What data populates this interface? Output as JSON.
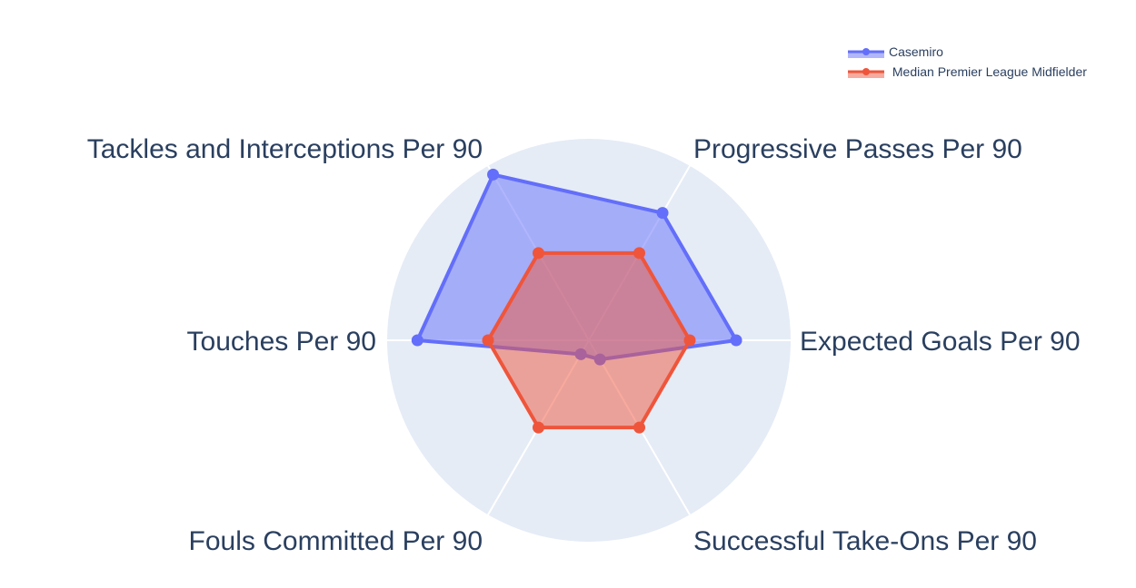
{
  "chart_data": {
    "type": "radar",
    "axes": [
      "Expected Goals Per 90",
      "Progressive Passes Per 90",
      "Tackles and Interceptions Per 90",
      "Touches Per 90",
      "Fouls Committed Per 90",
      "Successful Take-Ons Per 90"
    ],
    "range": [
      0,
      1
    ],
    "grid": true,
    "series": [
      {
        "name": "Casemiro",
        "values": [
          0.73,
          0.73,
          0.95,
          0.85,
          0.08,
          0.11
        ],
        "color": "#636efa"
      },
      {
        "name": " Median Premier League Midfielder",
        "values": [
          0.5,
          0.5,
          0.5,
          0.5,
          0.5,
          0.5
        ],
        "color": "#ef553b"
      }
    ],
    "legend_position": "top-right",
    "background_color": "#e5ecf6"
  }
}
